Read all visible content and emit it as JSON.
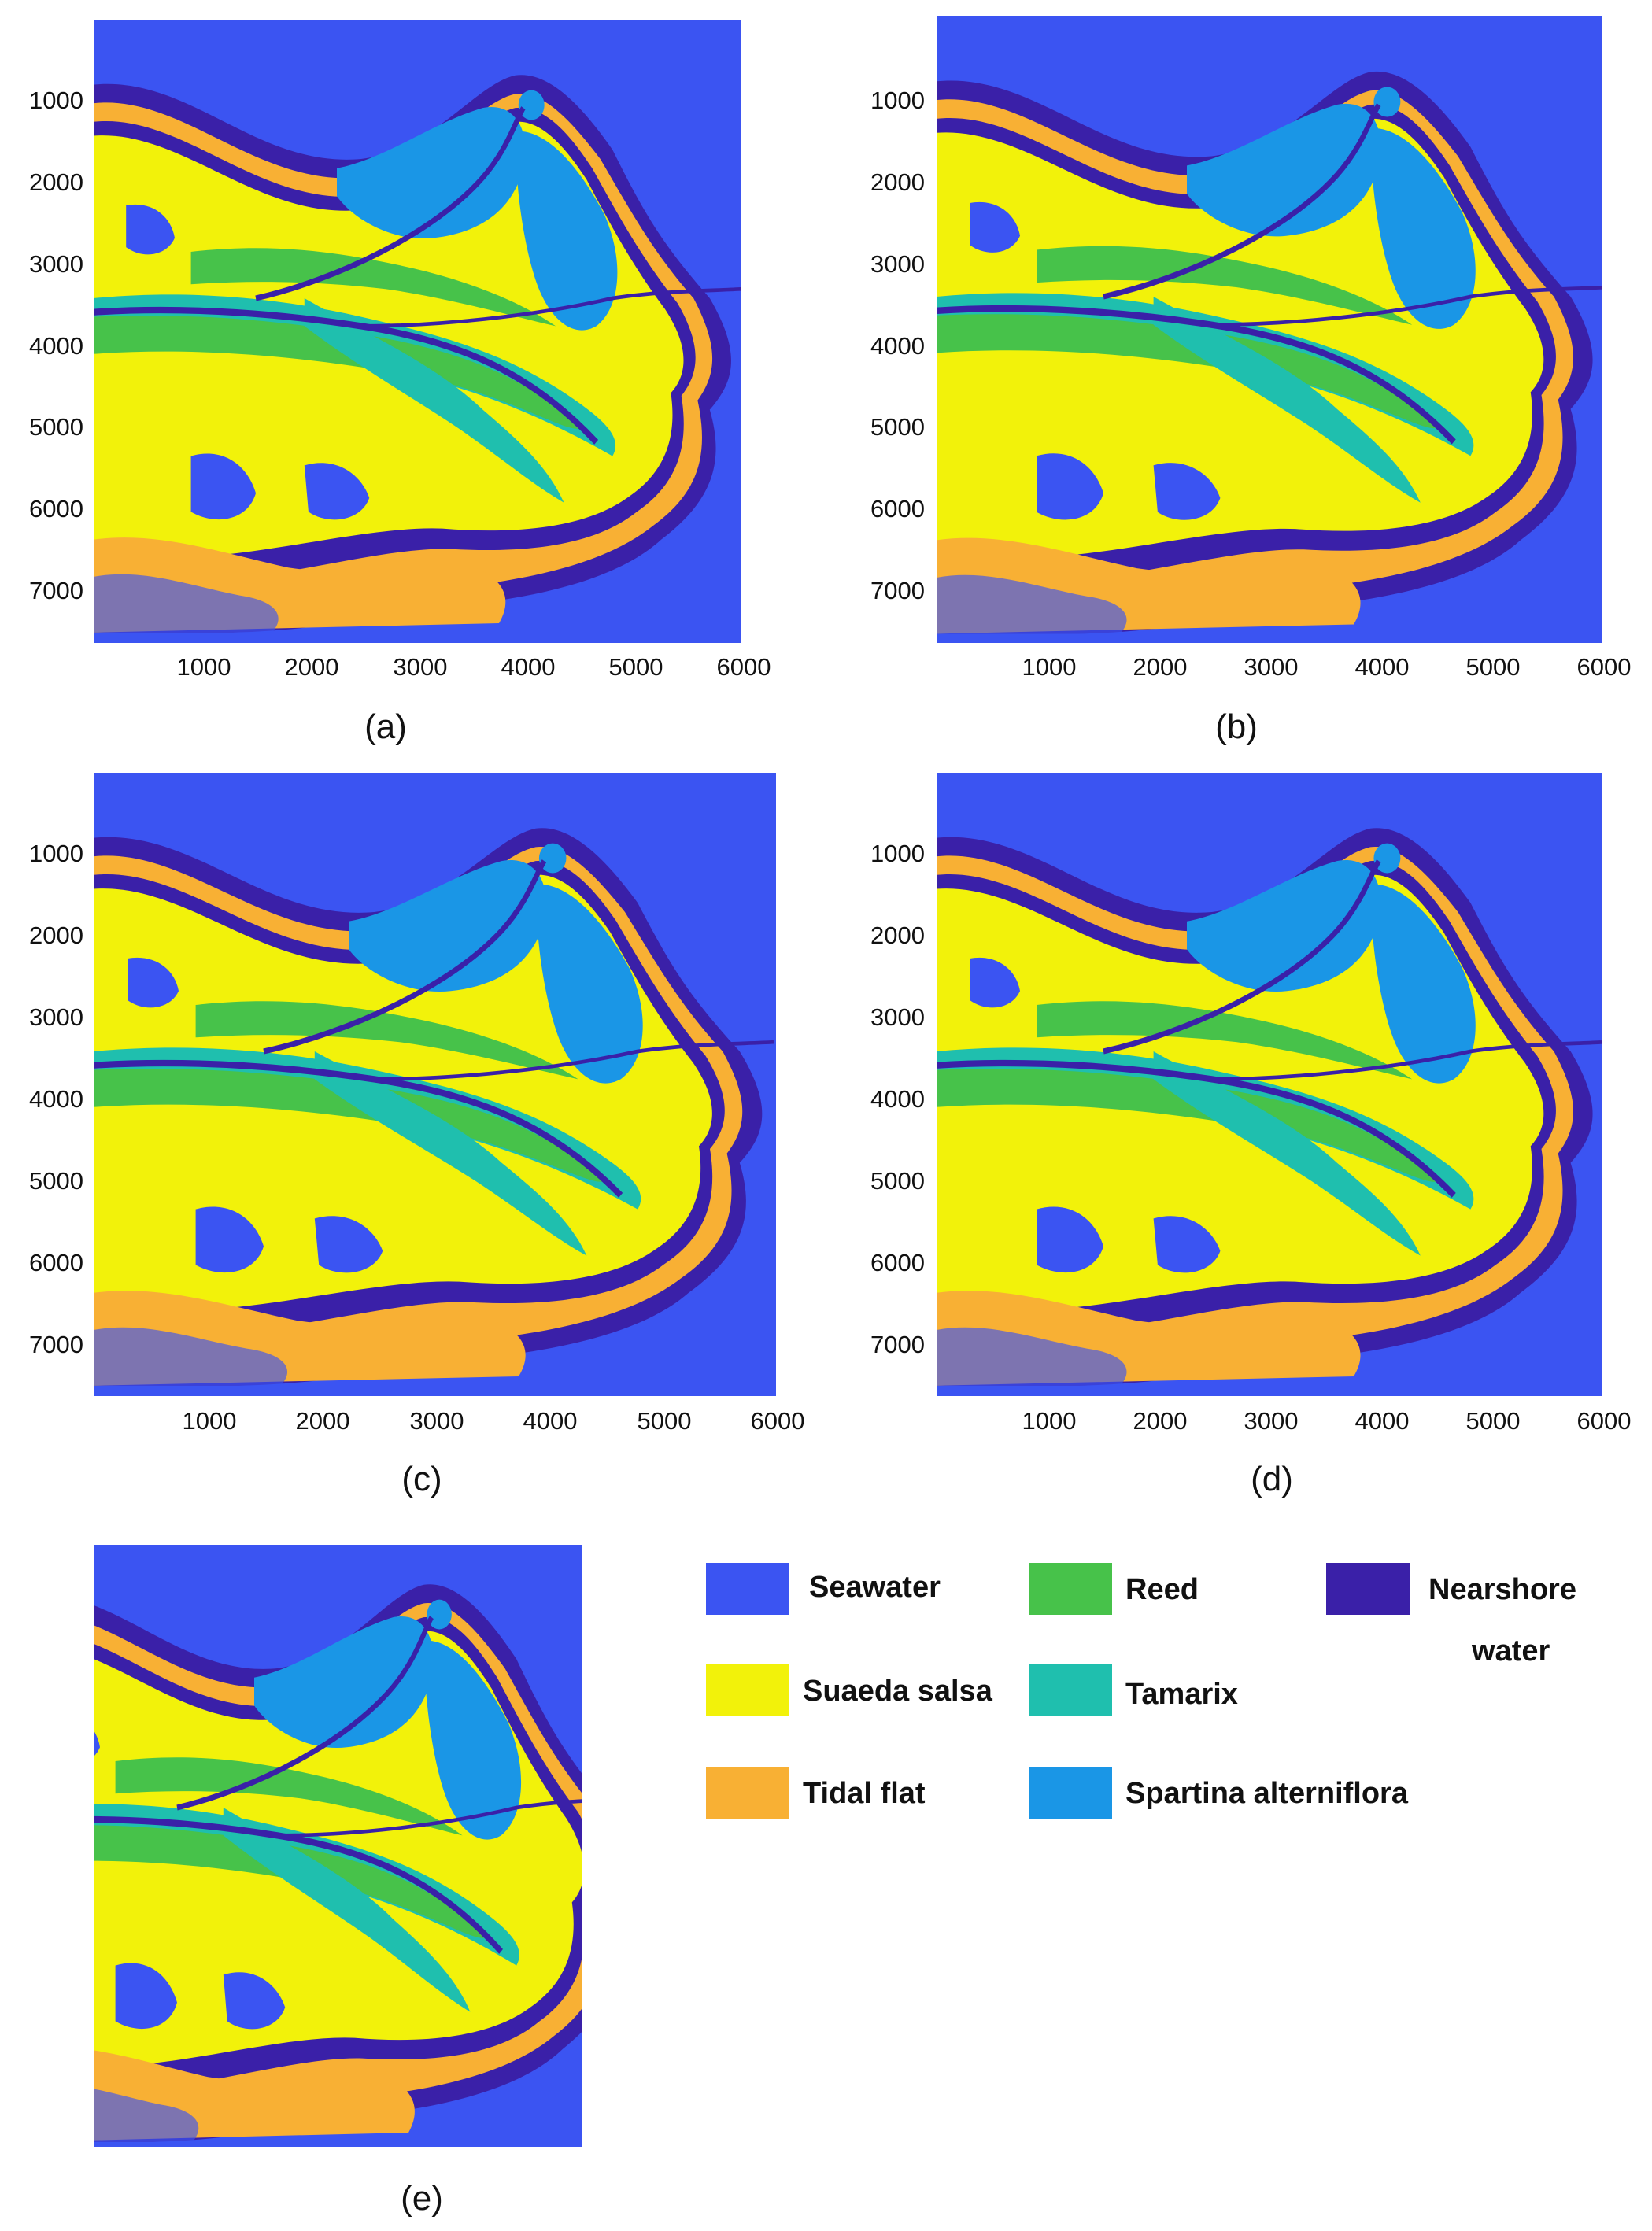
{
  "panels": [
    {
      "id": "a",
      "label": "(a)",
      "y_ticks": [
        "1000",
        "2000",
        "3000",
        "4000",
        "5000",
        "6000",
        "7000"
      ],
      "x_ticks": [
        "1000",
        "2000",
        "3000",
        "4000",
        "5000",
        "6000"
      ]
    },
    {
      "id": "b",
      "label": "(b)",
      "y_ticks": [
        "1000",
        "2000",
        "3000",
        "4000",
        "5000",
        "6000",
        "7000"
      ],
      "x_ticks": [
        "1000",
        "2000",
        "3000",
        "4000",
        "5000",
        "6000"
      ]
    },
    {
      "id": "c",
      "label": "(c)",
      "y_ticks": [
        "1000",
        "2000",
        "3000",
        "4000",
        "5000",
        "6000",
        "7000"
      ],
      "x_ticks": [
        "1000",
        "2000",
        "3000",
        "4000",
        "5000",
        "6000"
      ]
    },
    {
      "id": "d",
      "label": "(d)",
      "y_ticks": [
        "1000",
        "2000",
        "3000",
        "4000",
        "5000",
        "6000",
        "7000"
      ],
      "x_ticks": [
        "1000",
        "2000",
        "3000",
        "4000",
        "5000",
        "6000"
      ]
    },
    {
      "id": "e",
      "label": "(e)"
    }
  ],
  "legend": [
    {
      "label": "Seawater",
      "color": "#3b54f2"
    },
    {
      "label": "Reed",
      "color": "#47c24a"
    },
    {
      "label": "Nearshore water",
      "line1": "Nearshore",
      "line2": "water",
      "color": "#3a20a8"
    },
    {
      "label": "Suaeda salsa",
      "color": "#f2f20a"
    },
    {
      "label": "Tamarix",
      "color": "#1fbfae"
    },
    {
      "label": "Tidal flat",
      "color": "#f8b034"
    },
    {
      "label": "Spartina alterniflora",
      "color": "#1a96e6"
    }
  ],
  "colors": {
    "seawater": "#3b54f2",
    "nearshore": "#3a20a8",
    "suaeda": "#f2f20a",
    "tidal": "#f8b034",
    "reed": "#47c24a",
    "tamarix": "#1fbfae",
    "spartina": "#1a96e6"
  }
}
